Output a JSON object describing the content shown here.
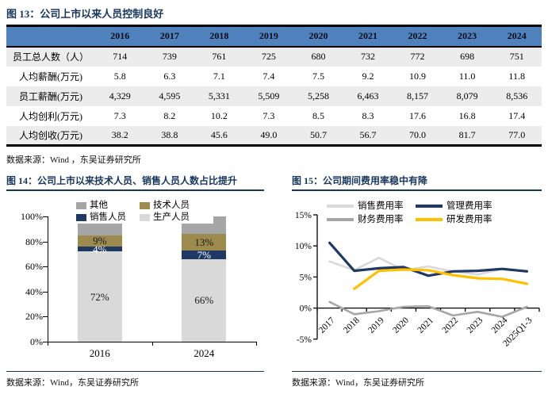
{
  "fig13": {
    "title": "图 13：公司上市以来人员控制良好",
    "source": "数据来源：Wind ，东吴证券研究所",
    "table": {
      "corner_label": "",
      "years": [
        "2016",
        "2017",
        "2018",
        "2019",
        "2020",
        "2021",
        "2022",
        "2023",
        "2024"
      ],
      "rows": [
        {
          "label": "员工总人数（人）",
          "values": [
            "714",
            "739",
            "761",
            "725",
            "680",
            "732",
            "772",
            "698",
            "751"
          ]
        },
        {
          "label": "人均薪酬(万元)",
          "values": [
            "5.8",
            "6.3",
            "7.1",
            "7.4",
            "7.5",
            "9.2",
            "10.9",
            "11.0",
            "11.8"
          ]
        },
        {
          "label": "员工薪酬(万元)",
          "values": [
            "4,329",
            "4,595",
            "5,331",
            "5,509",
            "5,258",
            "6,463",
            "8,157",
            "8,079",
            "8,536"
          ]
        },
        {
          "label": "人均创利(万元)",
          "values": [
            "7.3",
            "8.2",
            "10.2",
            "7.3",
            "8.5",
            "8.3",
            "17.6",
            "16.8",
            "17.4"
          ]
        },
        {
          "label": "人均创收(万元)",
          "values": [
            "38.2",
            "38.8",
            "45.6",
            "49.0",
            "50.7",
            "56.7",
            "70.0",
            "81.7",
            "77.0"
          ]
        }
      ],
      "header_bg": "#4f81bd",
      "stripe_bg": "#ececec"
    }
  },
  "fig14": {
    "title": "图 14：公司上市以来技术人员、销售人员人数占比提升",
    "source": "数据来源：Wind，东吴证券研究所",
    "chart_data": {
      "type": "bar",
      "stacked": true,
      "categories": [
        "2016",
        "2024"
      ],
      "series": [
        {
          "name": "生产人员",
          "color": "#d9d9d9",
          "values": [
            72,
            66
          ],
          "labels": [
            "72%",
            "66%"
          ],
          "label_color": "#1a1a1a"
        },
        {
          "name": "销售人员",
          "color": "#1f3864",
          "values": [
            4,
            7
          ],
          "labels": [
            "4%",
            "7%"
          ],
          "label_color": "#ffffff"
        },
        {
          "name": "技术人员",
          "color": "#9d8b4d",
          "values": [
            9,
            13
          ],
          "labels": [
            "9%",
            "13%"
          ],
          "label_color": "#1a1a1a"
        },
        {
          "name": "其他",
          "color": "#a6a6a6",
          "values": [
            15,
            14
          ],
          "labels": [
            "",
            ""
          ],
          "label_color": "#1a1a1a"
        }
      ],
      "legend_order": [
        "其他",
        "技术人员",
        "销售人员",
        "生产人员"
      ],
      "ylim": [
        0,
        100
      ],
      "ytick_values": [
        0,
        20,
        40,
        60,
        80,
        100
      ],
      "grid": false,
      "legend_position": "top"
    }
  },
  "fig15": {
    "title": "图 15：公司期间费用率稳中有降",
    "source": "数据来源：Wind，东吴证券研究所",
    "chart_data": {
      "type": "line",
      "x": [
        "2017",
        "2018",
        "2019",
        "2020",
        "2021",
        "2022",
        "2023",
        "2024",
        "2025Q1-3"
      ],
      "series": [
        {
          "name": "销售费用率",
          "color": "#d9d9d9",
          "values": [
            7.5,
            6.1,
            8.1,
            6.1,
            6.7,
            5.9,
            5.4,
            6.3,
            6.0
          ]
        },
        {
          "name": "管理费用率",
          "color": "#1f3864",
          "values": [
            10.5,
            6.0,
            6.4,
            6.6,
            5.2,
            5.9,
            6.0,
            6.3,
            5.9
          ]
        },
        {
          "name": "财务费用率",
          "color": "#a6a6a6",
          "values": [
            1.0,
            -1.0,
            -0.5,
            0.2,
            0.3,
            -1.2,
            -0.6,
            -1.4,
            0.2
          ]
        },
        {
          "name": "研发费用率",
          "color": "#ffc000",
          "values": [
            null,
            3.1,
            6.0,
            6.2,
            6.1,
            5.3,
            4.8,
            4.7,
            3.9
          ]
        }
      ],
      "ylim": [
        -5,
        15
      ],
      "ytick_values": [
        15,
        10,
        5,
        0,
        -5
      ],
      "grid": false,
      "legend_position": "top"
    }
  },
  "colors": {
    "title_navy": "#17375e",
    "table_header_blue": "#4f81bd",
    "table_stripe_gray": "#ececec",
    "navy": "#1f3864",
    "olive": "#9d8b4d",
    "gold": "#ffc000",
    "mid_gray": "#a6a6a6",
    "light_gray": "#d9d9d9"
  }
}
